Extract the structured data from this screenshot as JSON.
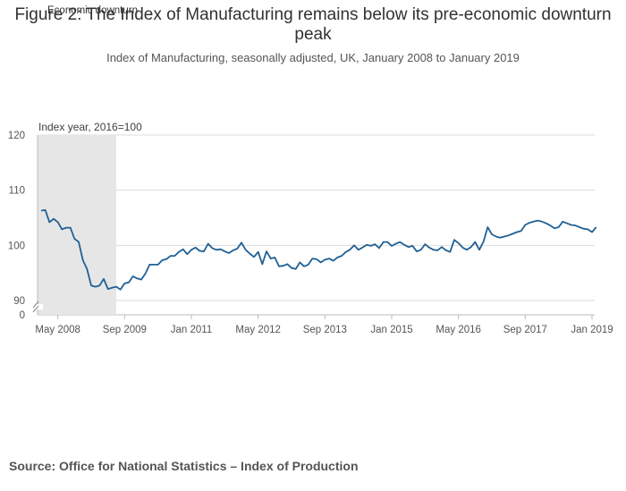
{
  "title": "Figure 2: The Index of Manufacturing remains below its pre-economic downturn peak",
  "subtitle": "Index of Manufacturing, seasonally adjusted, UK, January 2008 to January 2019",
  "source": "Source: Office for National Statistics – Index of Production",
  "chart_data": {
    "type": "line",
    "title": "Figure 2: The Index of Manufacturing remains below its pre-economic downturn peak",
    "subtitle": "Index of Manufacturing, seasonally adjusted, UK, January 2008 to January 2019",
    "ylabel": "Index year, 2016=100",
    "ylim": [
      90,
      120
    ],
    "y_ticks": [
      0,
      90,
      100,
      110,
      120
    ],
    "y_axis_break": true,
    "x_start": "2008-01",
    "x_end": "2019-01",
    "x_ticks": [
      {
        "date": "2008-05",
        "label": "May 2008"
      },
      {
        "date": "2009-09",
        "label": "Sep 2009"
      },
      {
        "date": "2011-01",
        "label": "Jan 2011"
      },
      {
        "date": "2012-05",
        "label": "May 2012"
      },
      {
        "date": "2013-09",
        "label": "Sep 2013"
      },
      {
        "date": "2015-01",
        "label": "Jan 2015"
      },
      {
        "date": "2016-05",
        "label": "May 2016"
      },
      {
        "date": "2017-09",
        "label": "Sep 2017"
      },
      {
        "date": "2019-01",
        "label": "Jan 2019"
      }
    ],
    "shaded_region": {
      "label": "Economic downturn",
      "start": "2008-01",
      "end": "2009-07"
    },
    "grid": true,
    "series_color": "#206095",
    "series": [
      {
        "name": "",
        "values": [
          106.3,
          106.4,
          104.2,
          104.8,
          104.2,
          102.9,
          103.2,
          103.2,
          101.2,
          100.6,
          97.3,
          95.7,
          92.7,
          92.5,
          92.7,
          93.9,
          92.1,
          92.3,
          92.5,
          92.0,
          93.1,
          93.3,
          94.4,
          94.0,
          93.8,
          94.9,
          96.5,
          96.5,
          96.5,
          97.3,
          97.5,
          98.1,
          98.1,
          98.8,
          99.3,
          98.4,
          99.2,
          99.6,
          99.0,
          98.9,
          100.3,
          99.5,
          99.2,
          99.3,
          98.9,
          98.6,
          99.1,
          99.4,
          100.5,
          99.2,
          98.5,
          97.9,
          98.8,
          96.6,
          98.9,
          97.6,
          97.8,
          96.2,
          96.3,
          96.6,
          95.9,
          95.7,
          96.9,
          96.2,
          96.5,
          97.6,
          97.5,
          96.9,
          97.4,
          97.6,
          97.2,
          97.8,
          98.1,
          98.8,
          99.2,
          100.0,
          99.2,
          99.6,
          100.1,
          99.9,
          100.2,
          99.5,
          100.6,
          100.6,
          99.9,
          100.3,
          100.6,
          100.1,
          99.7,
          99.9,
          98.9,
          99.2,
          100.2,
          99.6,
          99.2,
          99.1,
          99.7,
          99.1,
          98.8,
          101.0,
          100.4,
          99.6,
          99.2,
          99.7,
          100.6,
          99.2,
          100.7,
          103.3,
          102.0,
          101.6,
          101.4,
          101.6,
          101.8,
          102.1,
          102.4,
          102.6,
          103.7,
          104.1,
          104.3,
          104.5,
          104.3,
          104.0,
          103.6,
          103.1,
          103.3,
          104.3,
          104.0,
          103.7,
          103.6,
          103.3,
          103.0,
          102.9,
          102.4,
          103.3
        ]
      }
    ]
  }
}
